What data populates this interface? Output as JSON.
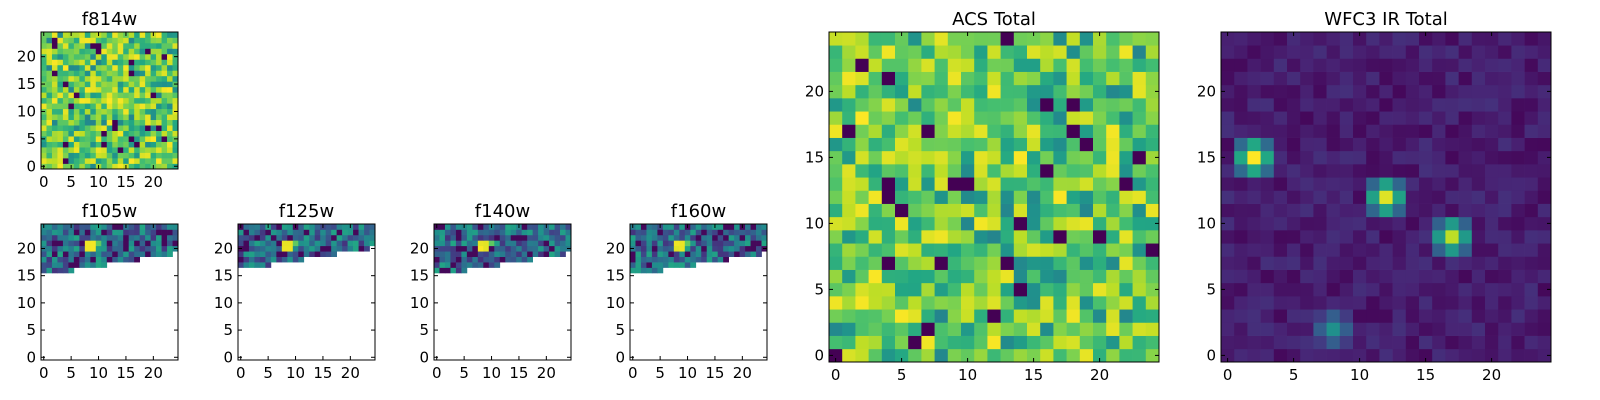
{
  "chart_data": [
    {
      "type": "heatmap",
      "title": "f814w",
      "colormap": "viridis",
      "grid_size": 25,
      "fill": "random-dense",
      "xticks": [
        0,
        5,
        10,
        15,
        20
      ],
      "yticks": [
        0,
        5,
        10,
        15,
        20
      ]
    },
    {
      "type": "heatmap",
      "title": "f105w",
      "colormap": "viridis",
      "grid_size": 25,
      "fill": "top-strip",
      "coverage_rows": [
        16,
        24
      ],
      "xticks": [
        0,
        5,
        10,
        15,
        20
      ],
      "yticks": [
        0,
        5,
        10,
        15,
        20
      ]
    },
    {
      "type": "heatmap",
      "title": "f125w",
      "colormap": "viridis",
      "grid_size": 25,
      "fill": "top-strip",
      "coverage_rows": [
        17,
        24
      ],
      "xticks": [
        0,
        5,
        10,
        15,
        20
      ],
      "yticks": [
        0,
        5,
        10,
        15,
        20
      ]
    },
    {
      "type": "heatmap",
      "title": "f140w",
      "colormap": "viridis",
      "grid_size": 25,
      "fill": "top-strip",
      "coverage_rows": [
        16,
        24
      ],
      "xticks": [
        0,
        5,
        10,
        15,
        20
      ],
      "yticks": [
        0,
        5,
        10,
        15,
        20
      ]
    },
    {
      "type": "heatmap",
      "title": "f160w",
      "colormap": "viridis",
      "grid_size": 25,
      "fill": "top-strip",
      "coverage_rows": [
        16,
        24
      ],
      "xticks": [
        0,
        5,
        10,
        15,
        20
      ],
      "yticks": [
        0,
        5,
        10,
        15,
        20
      ]
    },
    {
      "type": "heatmap",
      "title": "ACS Total",
      "colormap": "viridis",
      "grid_size": 25,
      "fill": "random-dense",
      "xticks": [
        0,
        5,
        10,
        15,
        20
      ],
      "yticks": [
        0,
        5,
        10,
        15,
        20
      ]
    },
    {
      "type": "heatmap",
      "title": "WFC3 IR Total",
      "colormap": "viridis",
      "grid_size": 25,
      "fill": "sources",
      "sources": [
        {
          "x": 2,
          "y": 15,
          "value": 1.0
        },
        {
          "x": 12,
          "y": 12,
          "value": 0.95
        },
        {
          "x": 17,
          "y": 9,
          "value": 0.9
        },
        {
          "x": 8,
          "y": 2,
          "value": 0.5
        }
      ],
      "xticks": [
        0,
        5,
        10,
        15,
        20
      ],
      "yticks": [
        0,
        5,
        10,
        15,
        20
      ]
    }
  ]
}
